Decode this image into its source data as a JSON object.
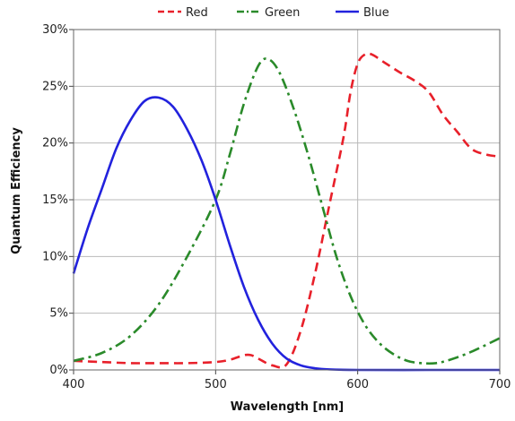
{
  "chart_data": {
    "type": "line",
    "title": "",
    "xlabel": "Wavelength [nm]",
    "ylabel": "Quantum Efficiency",
    "xlim": [
      400,
      700
    ],
    "ylim": [
      0,
      30
    ],
    "x_ticks": [
      400,
      500,
      600,
      700
    ],
    "y_ticks": [
      0,
      5,
      10,
      15,
      20,
      25,
      30
    ],
    "x_tick_labels": [
      "400",
      "500",
      "600",
      "700"
    ],
    "y_tick_labels": [
      "0%",
      "5%",
      "10%",
      "15%",
      "20%",
      "25%",
      "30%"
    ],
    "grid": true,
    "legend_position": "top",
    "series": [
      {
        "name": "Red",
        "color": "#e8202a",
        "dash": "dashed",
        "x": [
          400,
          420,
          440,
          460,
          480,
          500,
          510,
          520,
          525,
          530,
          540,
          550,
          560,
          570,
          580,
          590,
          595,
          600,
          605,
          610,
          620,
          630,
          640,
          650,
          660,
          670,
          680,
          690,
          700
        ],
        "y": [
          0.8,
          0.7,
          0.6,
          0.6,
          0.6,
          0.7,
          0.9,
          1.3,
          1.3,
          1.0,
          0.4,
          0.5,
          3.5,
          8.5,
          14.5,
          20.5,
          24.5,
          27.0,
          27.8,
          27.8,
          27.0,
          26.2,
          25.5,
          24.5,
          22.5,
          21.0,
          19.5,
          19.0,
          18.8
        ]
      },
      {
        "name": "Green",
        "color": "#2a8a2a",
        "dash": "dash-dot",
        "x": [
          400,
          420,
          440,
          460,
          480,
          500,
          510,
          520,
          530,
          537,
          545,
          555,
          565,
          575,
          585,
          595,
          605,
          615,
          625,
          635,
          645,
          655,
          665,
          680,
          700
        ],
        "y": [
          0.8,
          1.5,
          3.0,
          5.8,
          10.0,
          15.0,
          19.0,
          23.5,
          26.8,
          27.4,
          26.2,
          23.0,
          19.0,
          14.5,
          10.0,
          6.5,
          4.0,
          2.4,
          1.4,
          0.8,
          0.6,
          0.6,
          0.9,
          1.6,
          2.8
        ]
      },
      {
        "name": "Blue",
        "color": "#2222dd",
        "dash": "solid",
        "x": [
          400,
          410,
          420,
          430,
          440,
          450,
          460,
          470,
          480,
          490,
          500,
          510,
          520,
          530,
          540,
          550,
          560,
          570,
          580,
          600,
          650,
          700
        ],
        "y": [
          8.5,
          12.5,
          16.0,
          19.5,
          22.0,
          23.7,
          24.0,
          23.2,
          21.2,
          18.5,
          15.0,
          11.0,
          7.3,
          4.4,
          2.3,
          1.0,
          0.4,
          0.15,
          0.05,
          0.0,
          0.0,
          0.0
        ]
      }
    ]
  }
}
